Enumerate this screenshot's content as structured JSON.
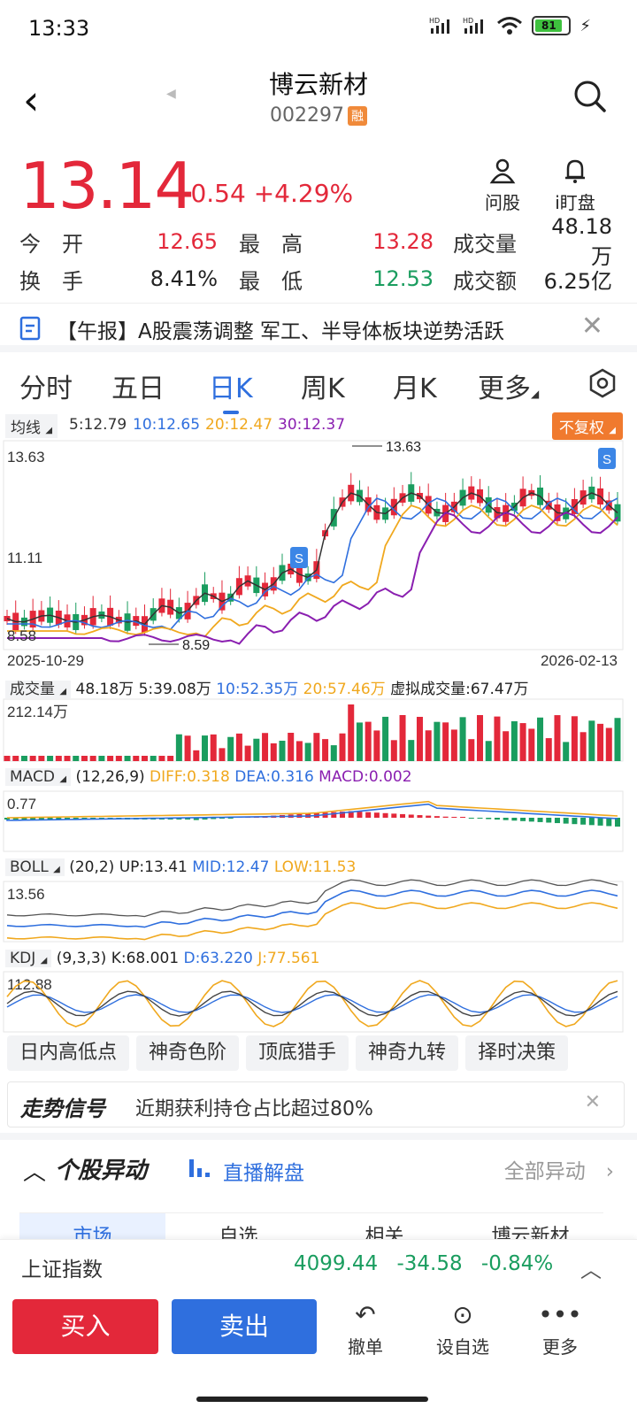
{
  "status": {
    "time": "13:33",
    "net1": "HD",
    "net2": "HD",
    "battery": "81"
  },
  "header": {
    "title": "博云新材",
    "code": "002297",
    "rong": "融"
  },
  "quote": {
    "price": "13.14",
    "change": "+0.54",
    "change_pct": "+4.29%",
    "ask_label": "问股",
    "watch_label": "i盯盘",
    "open_label": "今　开",
    "open": "12.65",
    "high_label": "最　高",
    "high": "13.28",
    "vol_label": "成交量",
    "vol": "48.18万",
    "turnover_label": "换　手",
    "turnover": "8.41%",
    "low_label": "最　低",
    "low": "12.53",
    "amount_label": "成交额",
    "amount": "6.25亿"
  },
  "news": {
    "text": "【午报】A股震荡调整 军工、半导体板块逆势活跃"
  },
  "tabs": [
    "分时",
    "五日",
    "日K",
    "周K",
    "月K",
    "更多"
  ],
  "ma": {
    "chip": "均线",
    "ma5": "5:12.79",
    "ma10": "10:12.65",
    "ma20": "20:12.47",
    "ma30": "30:12.37",
    "adjust": "不复权"
  },
  "kline": {
    "max_label": "13.63",
    "mid_label": "11.11",
    "min_label": "8.58",
    "low_marker": "8.59",
    "high_marker": "13.63",
    "start_date": "2025-10-29",
    "end_date": "2026-02-13",
    "s_badge": "S"
  },
  "volume": {
    "chip": "成交量",
    "v": "48.18万",
    "v5": "5:39.08万",
    "v10": "10:52.35万",
    "v20": "20:57.46万",
    "virtual": "虚拟成交量:67.47万",
    "max": "212.14万"
  },
  "macd": {
    "chip": "MACD",
    "param": "(12,26,9)",
    "diff": "DIFF:0.318",
    "dea": "DEA:0.316",
    "macd": "MACD:0.002",
    "max": "0.77"
  },
  "boll": {
    "chip": "BOLL",
    "param": "(20,2)",
    "up": "UP:13.41",
    "mid": "MID:12.47",
    "low": "LOW:11.53",
    "max": "13.56"
  },
  "kdj": {
    "chip": "KDJ",
    "param": "(9,3,3)",
    "k": "K:68.001",
    "d": "D:63.220",
    "j": "J:77.561",
    "max": "112.88"
  },
  "tools": [
    "日内高低点",
    "神奇色阶",
    "顶底猎手",
    "神奇九转",
    "择时决策"
  ],
  "signal": {
    "title": "走势信号",
    "text": "近期获利持仓占比超过80%"
  },
  "movement": {
    "title": "个股异动",
    "live": "直播解盘",
    "all": "全部异动",
    "subtabs": [
      "市场",
      "自选",
      "相关",
      "博云新材"
    ]
  },
  "index": {
    "name": "上证指数",
    "value": "4099.44",
    "change": "-34.58",
    "pct": "-0.84%"
  },
  "bottom": {
    "buy": "买入",
    "sell": "卖出",
    "cancel": "撤单",
    "watch": "设自选",
    "more": "更多"
  },
  "colors": {
    "up": "#e3283a",
    "down": "#1a9d5f",
    "accent": "#2f6fde",
    "ma5": "#333333",
    "ma10": "#2f6fde",
    "ma20": "#f0a81e",
    "ma30": "#8a1fb0"
  }
}
